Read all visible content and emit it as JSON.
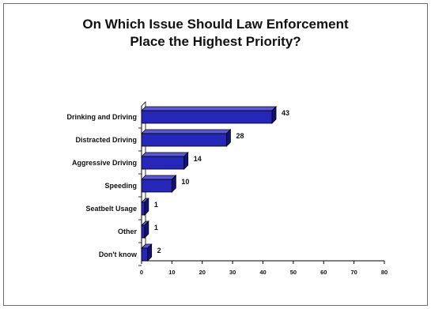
{
  "chart_data": {
    "type": "bar",
    "orientation": "horizontal",
    "title": "On Which Issue Should Law Enforcement Place the Highest Priority?",
    "title_lines": [
      "On Which Issue Should Law Enforcement",
      "Place the Highest Priority?"
    ],
    "categories": [
      "Drinking and Driving",
      "Distracted Driving",
      "Aggressive Driving",
      "Speeding",
      "Seatbelt Usage",
      "Other",
      "Don't know"
    ],
    "values": [
      43,
      28,
      14,
      10,
      1,
      1,
      2
    ],
    "value_labels": [
      "43",
      "28",
      "14",
      "10",
      "1",
      "1",
      "2"
    ],
    "x_ticks": [
      "0",
      "10",
      "20",
      "30",
      "40",
      "50",
      "60",
      "70",
      "80"
    ],
    "xlim": [
      0,
      80
    ],
    "xlabel": "",
    "ylabel": "",
    "grid": false,
    "legend": "none",
    "style": "3d",
    "colors": {
      "bar_front": "#2626b8",
      "bar_top": "#5a5ad6",
      "bar_side": "#12127a",
      "outline": "#000000"
    }
  }
}
